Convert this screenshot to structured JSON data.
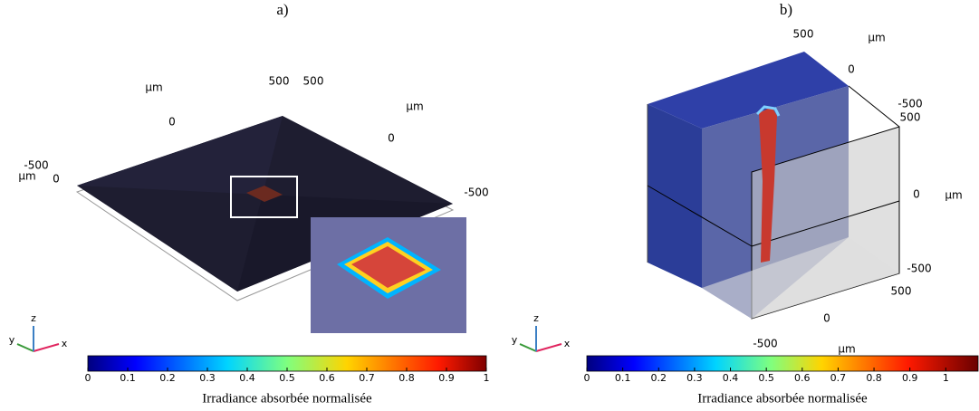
{
  "panels": [
    {
      "label": "a)",
      "axis_labels": [
        "μm",
        500,
        500,
        "μm",
        0,
        0,
        -500,
        "μm",
        0,
        -500
      ],
      "triad": [
        "x",
        "y",
        "z"
      ],
      "colorbar": {
        "lim": [
          0,
          1
        ],
        "ticks": [
          0,
          0.1,
          0.2,
          0.3,
          0.4,
          0.5,
          0.6,
          0.7,
          0.8,
          0.9,
          1
        ],
        "label": "Irradiance absorbée normalisée"
      }
    },
    {
      "label": "b)",
      "axis_labels": [
        500,
        "μm",
        0,
        -500,
        500,
        0,
        "μm",
        -500,
        500,
        0,
        -500,
        "μm"
      ],
      "triad": [
        "x",
        "y",
        "z"
      ],
      "colorbar": {
        "lim": [
          0,
          1.09
        ],
        "ticks": [
          0,
          0.1,
          0.2,
          0.3,
          0.4,
          0.5,
          0.6,
          0.7,
          0.8,
          0.9,
          1
        ],
        "label": "Irradiance absorbée normalisée"
      }
    }
  ]
}
